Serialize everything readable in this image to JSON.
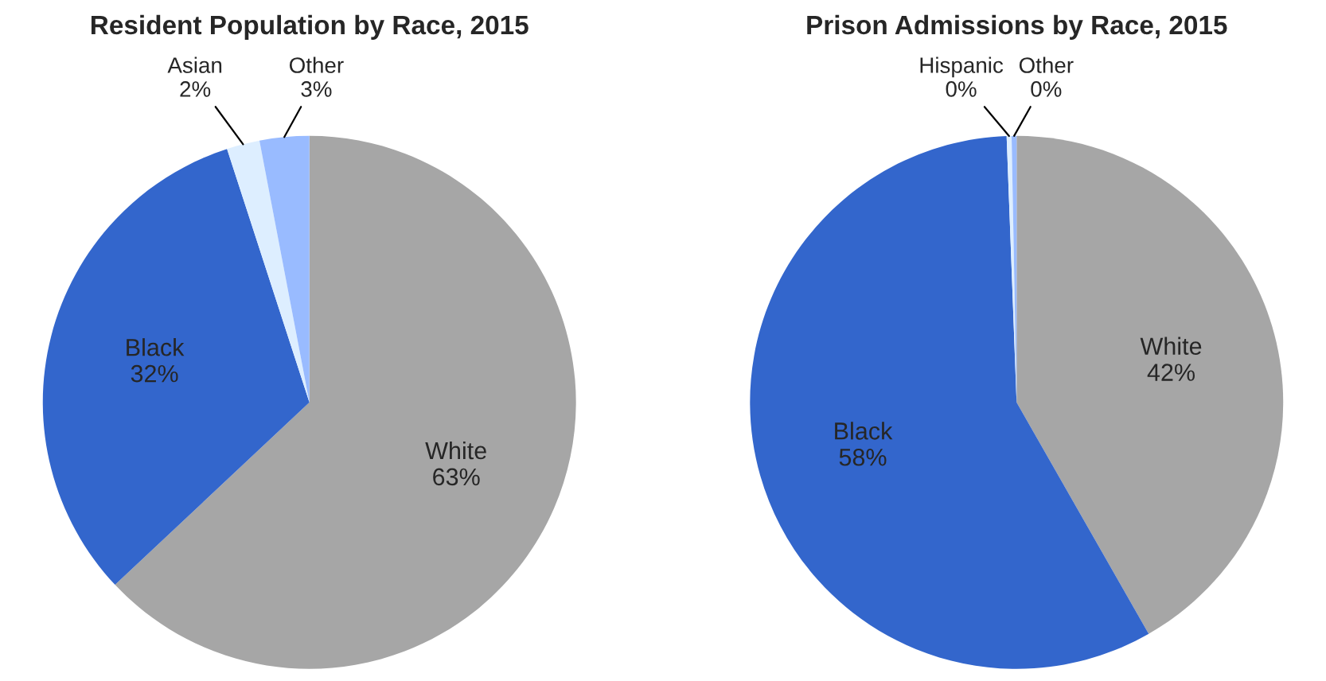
{
  "chart_data": [
    {
      "type": "pie",
      "title": "Resident Population by Race, 2015",
      "categories": [
        "White",
        "Black",
        "Asian",
        "Other"
      ],
      "values": [
        63,
        32,
        2,
        3
      ],
      "colors": [
        "#a6a6a6",
        "#3366cc",
        "#ddeeff",
        "#99bbff"
      ],
      "value_labels": [
        "63%",
        "32%",
        "2%",
        "3%"
      ]
    },
    {
      "type": "pie",
      "title": "Prison Admissions by Race, 2015",
      "categories": [
        "White",
        "Black",
        "Hispanic",
        "Other"
      ],
      "values": [
        42,
        58,
        0.3,
        0.3
      ],
      "value_labels": [
        "42%",
        "58%",
        "0%",
        "0%"
      ],
      "colors": [
        "#a6a6a6",
        "#3366cc",
        "#ddeeff",
        "#99bbff"
      ]
    }
  ]
}
